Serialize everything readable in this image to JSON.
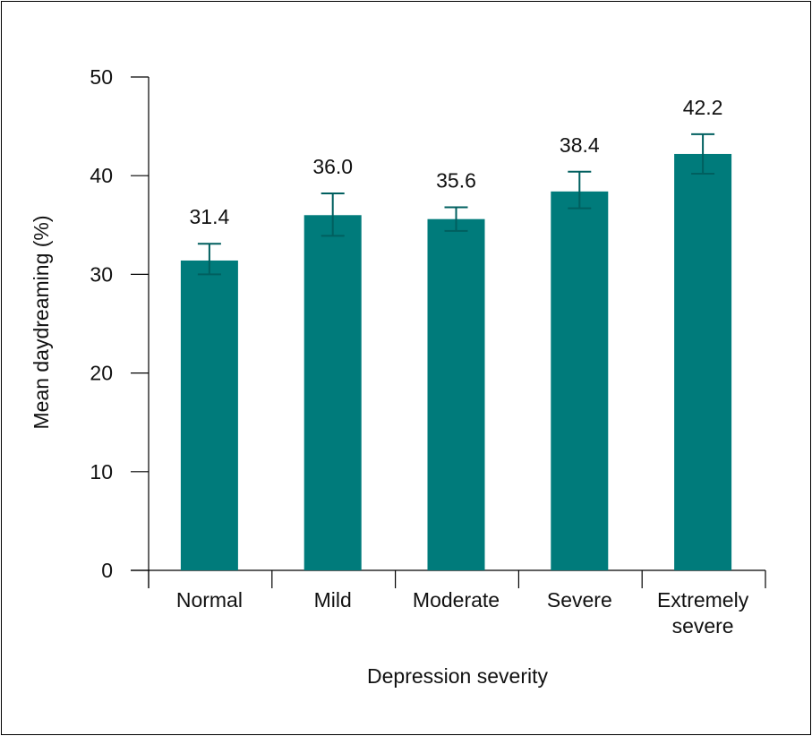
{
  "chart_data": {
    "type": "bar",
    "title": "",
    "xlabel": "Depression severity",
    "ylabel": "Mean daydreaming (%)",
    "ylim": [
      0,
      50
    ],
    "yticks": [
      0,
      10,
      20,
      30,
      40,
      50
    ],
    "categories": [
      [
        "Normal"
      ],
      [
        "Mild"
      ],
      [
        "Moderate"
      ],
      [
        "Severe"
      ],
      [
        "Extremely",
        "severe"
      ]
    ],
    "values": [
      31.4,
      36.0,
      35.6,
      38.4,
      42.2
    ],
    "value_labels": [
      "31.4",
      "36.0",
      "35.6",
      "38.4",
      "42.2"
    ],
    "error_low": [
      30.0,
      33.9,
      34.4,
      36.7,
      40.2
    ],
    "error_high": [
      33.1,
      38.2,
      36.8,
      40.4,
      44.2
    ],
    "grid": false,
    "colors": {
      "bar": "#007b7b",
      "error": "#005f5f",
      "axis": "#000000"
    }
  }
}
